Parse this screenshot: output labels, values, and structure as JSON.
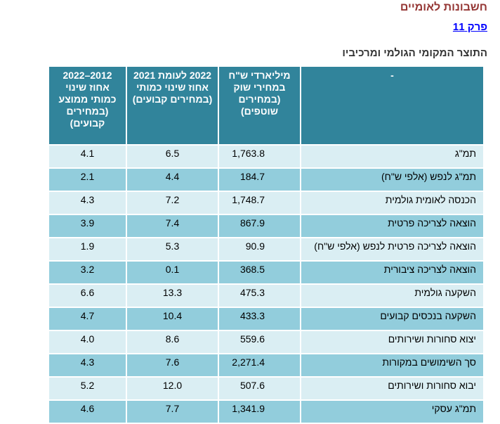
{
  "header": {
    "title": "חשבונות לאומיים",
    "chapter_link": "פרק 11",
    "table_title": "התוצר המקומי הגולמי ומרכיביו"
  },
  "table": {
    "columns": [
      "-",
      "מיליארדי ש\"ח במחירי שוק (במחירים שוטפים)",
      "2022 לעומת 2021 אחוז שינוי כמותי (במחירים קבועים)",
      "2012–2022 אחוז שינוי כמותי ממוצע (במחירים קבועים)"
    ],
    "rows": [
      {
        "label": "תמ\"ג",
        "value": "1,763.8",
        "change_2022": "6.5",
        "avg_change": "4.1"
      },
      {
        "label": "תמ\"ג לנפש (אלפי ש\"ח)",
        "value": "184.7",
        "change_2022": "4.4",
        "avg_change": "2.1"
      },
      {
        "label": "הכנסה לאומית גולמית",
        "value": "1,748.7",
        "change_2022": "7.2",
        "avg_change": "4.3"
      },
      {
        "label": "הוצאה לצריכה פרטית",
        "value": "867.9",
        "change_2022": "7.4",
        "avg_change": "3.9"
      },
      {
        "label": "הוצאה לצריכה פרטית לנפש (אלפי ש\"ח)",
        "value": "90.9",
        "change_2022": "5.3",
        "avg_change": "1.9"
      },
      {
        "label": "הוצאה לצריכה ציבורית",
        "value": "368.5",
        "change_2022": "0.1",
        "avg_change": "3.2"
      },
      {
        "label": "השקעה גולמית",
        "value": "475.3",
        "change_2022": "13.3",
        "avg_change": "6.6"
      },
      {
        "label": "השקעה בנכסים קבועים",
        "value": "433.3",
        "change_2022": "10.4",
        "avg_change": "4.7"
      },
      {
        "label": "יצוא סחורות ושירותים",
        "value": "559.6",
        "change_2022": "8.6",
        "avg_change": "4.0"
      },
      {
        "label": "סך השימושים במקורות",
        "value": "2,271.4",
        "change_2022": "7.6",
        "avg_change": "4.3"
      },
      {
        "label": "יבוא סחורות ושירותים",
        "value": "507.6",
        "change_2022": "12.0",
        "avg_change": "5.2"
      },
      {
        "label": "תמ\"ג עסקי",
        "value": "1,341.9",
        "change_2022": "7.7",
        "avg_change": "4.6"
      }
    ]
  },
  "colors": {
    "title": "#953735",
    "header_bg": "#31849b",
    "row_light": "#daeef3",
    "row_dark": "#92cddc",
    "link": "#0000ff"
  }
}
